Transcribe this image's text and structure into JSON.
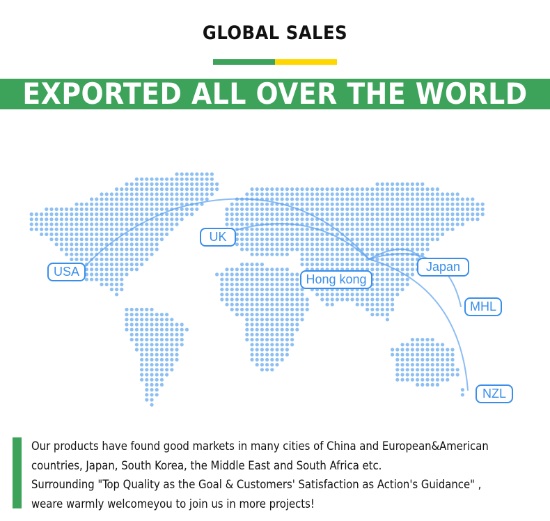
{
  "header": {
    "title": "GLOBAL SALES",
    "accent_green": "#3da35a",
    "accent_yellow": "#ffd700"
  },
  "banner": {
    "text": "EXPORTED ALL OVER THE WORLD"
  },
  "map": {
    "dot_color": "#8dbff2",
    "line_color": "#5aa0ee",
    "labels": {
      "usa": "USA",
      "uk": "UK",
      "hongkong": "Hong kong",
      "japan": "Japan",
      "mhl": "MHL",
      "nzl": "NZL"
    }
  },
  "description": {
    "lines": [
      "Our products have found good markets in many cities of China and European&American",
      "countries, Japan, South Korea, the Middle East and South Africa etc.",
      "Surrounding \"Top Quality as the Goal & Customers' Satisfaction as Action's Guidance\" ,",
      "weare warmly welcomeyou to join us in more projects!"
    ]
  }
}
